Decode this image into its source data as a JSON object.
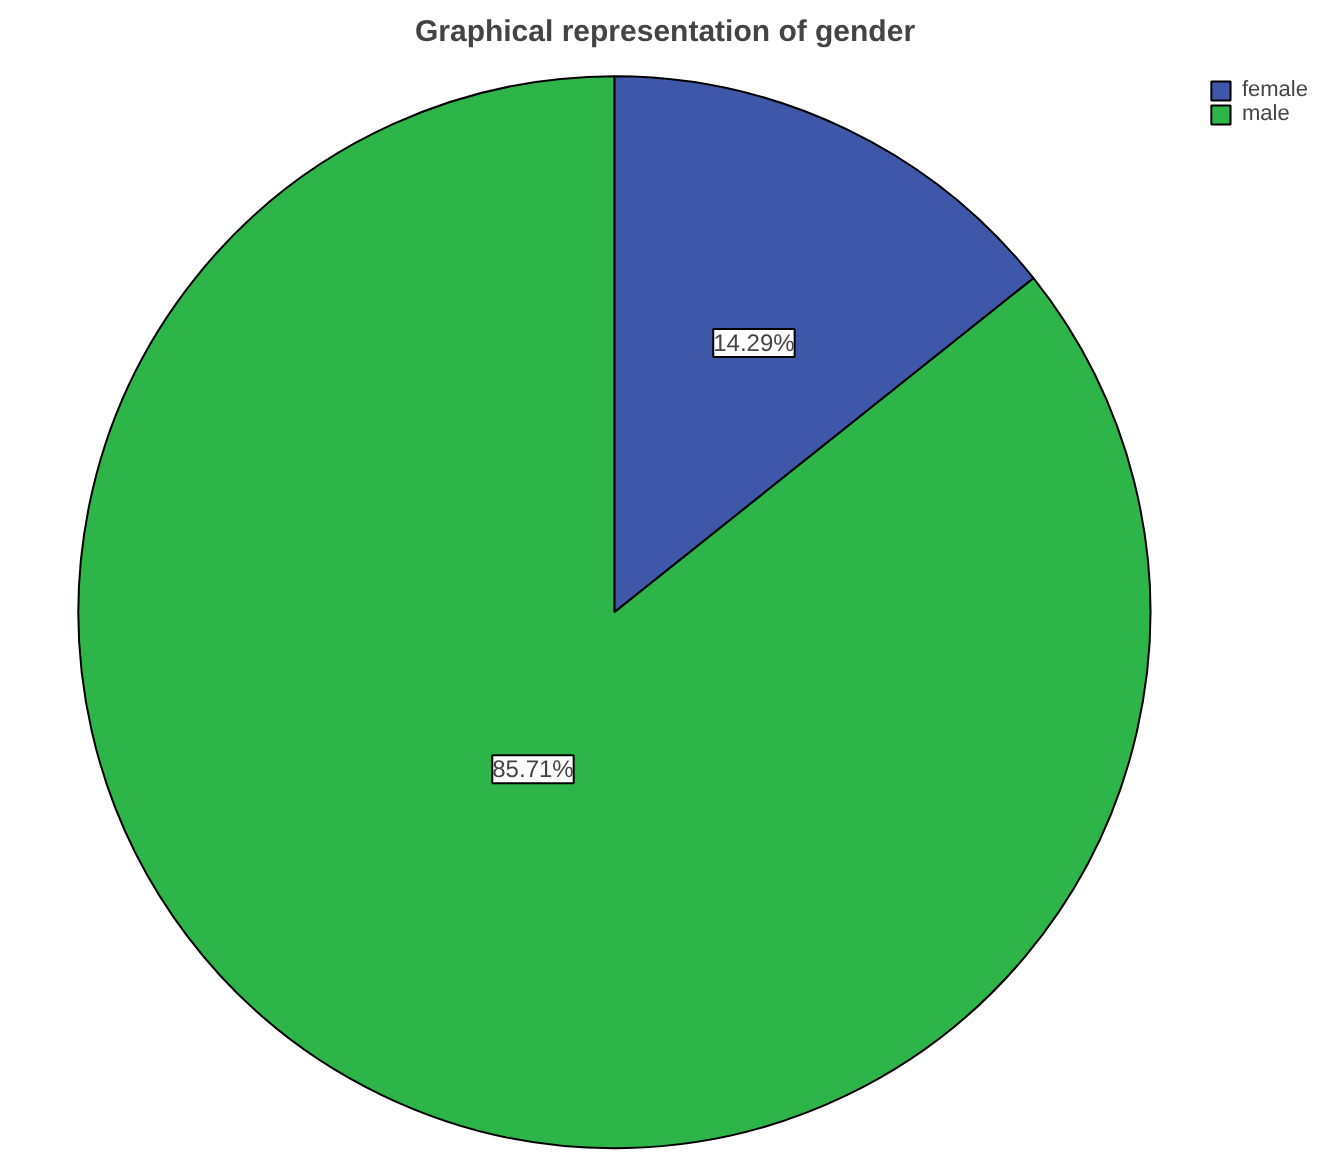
{
  "chart_data": {
    "type": "pie",
    "title": "Graphical representation of gender",
    "categories": [
      "female",
      "male"
    ],
    "values": [
      14.29,
      85.71
    ],
    "colors": [
      "#3f57a9",
      "#2eb54a"
    ],
    "value_labels": [
      "14.29%",
      "85.71%"
    ],
    "legend": "top right"
  }
}
